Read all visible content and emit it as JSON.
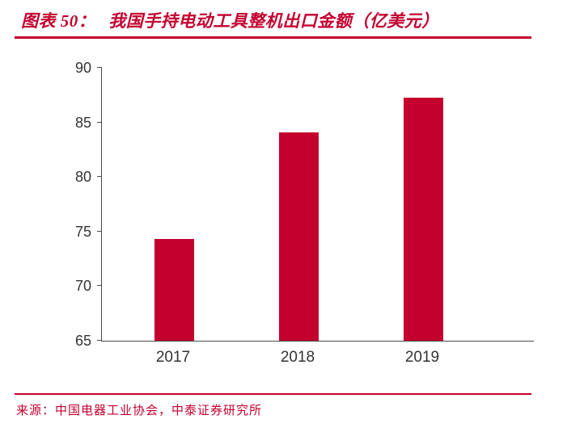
{
  "header": {
    "figure_label": "图表 50：",
    "title": "我国手持电动工具整机出口金额（亿美元）"
  },
  "footer": {
    "source": "来源：中国电器工业协会，中泰证券研究所"
  },
  "colors": {
    "accent": "#C4002F",
    "axis": "#4A4A4A",
    "tick_text": "#333333"
  },
  "chart_data": {
    "type": "bar",
    "title": "我国手持电动工具整机出口金额（亿美元）",
    "categories": [
      "2017",
      "2018",
      "2019"
    ],
    "values": [
      74.3,
      84.1,
      87.3
    ],
    "xlabel": "",
    "ylabel": "",
    "ylim": [
      65,
      90
    ],
    "yticks": [
      65,
      70,
      75,
      80,
      85,
      90
    ],
    "grid": false,
    "legend": "none",
    "bar_color": "#C4002F"
  }
}
